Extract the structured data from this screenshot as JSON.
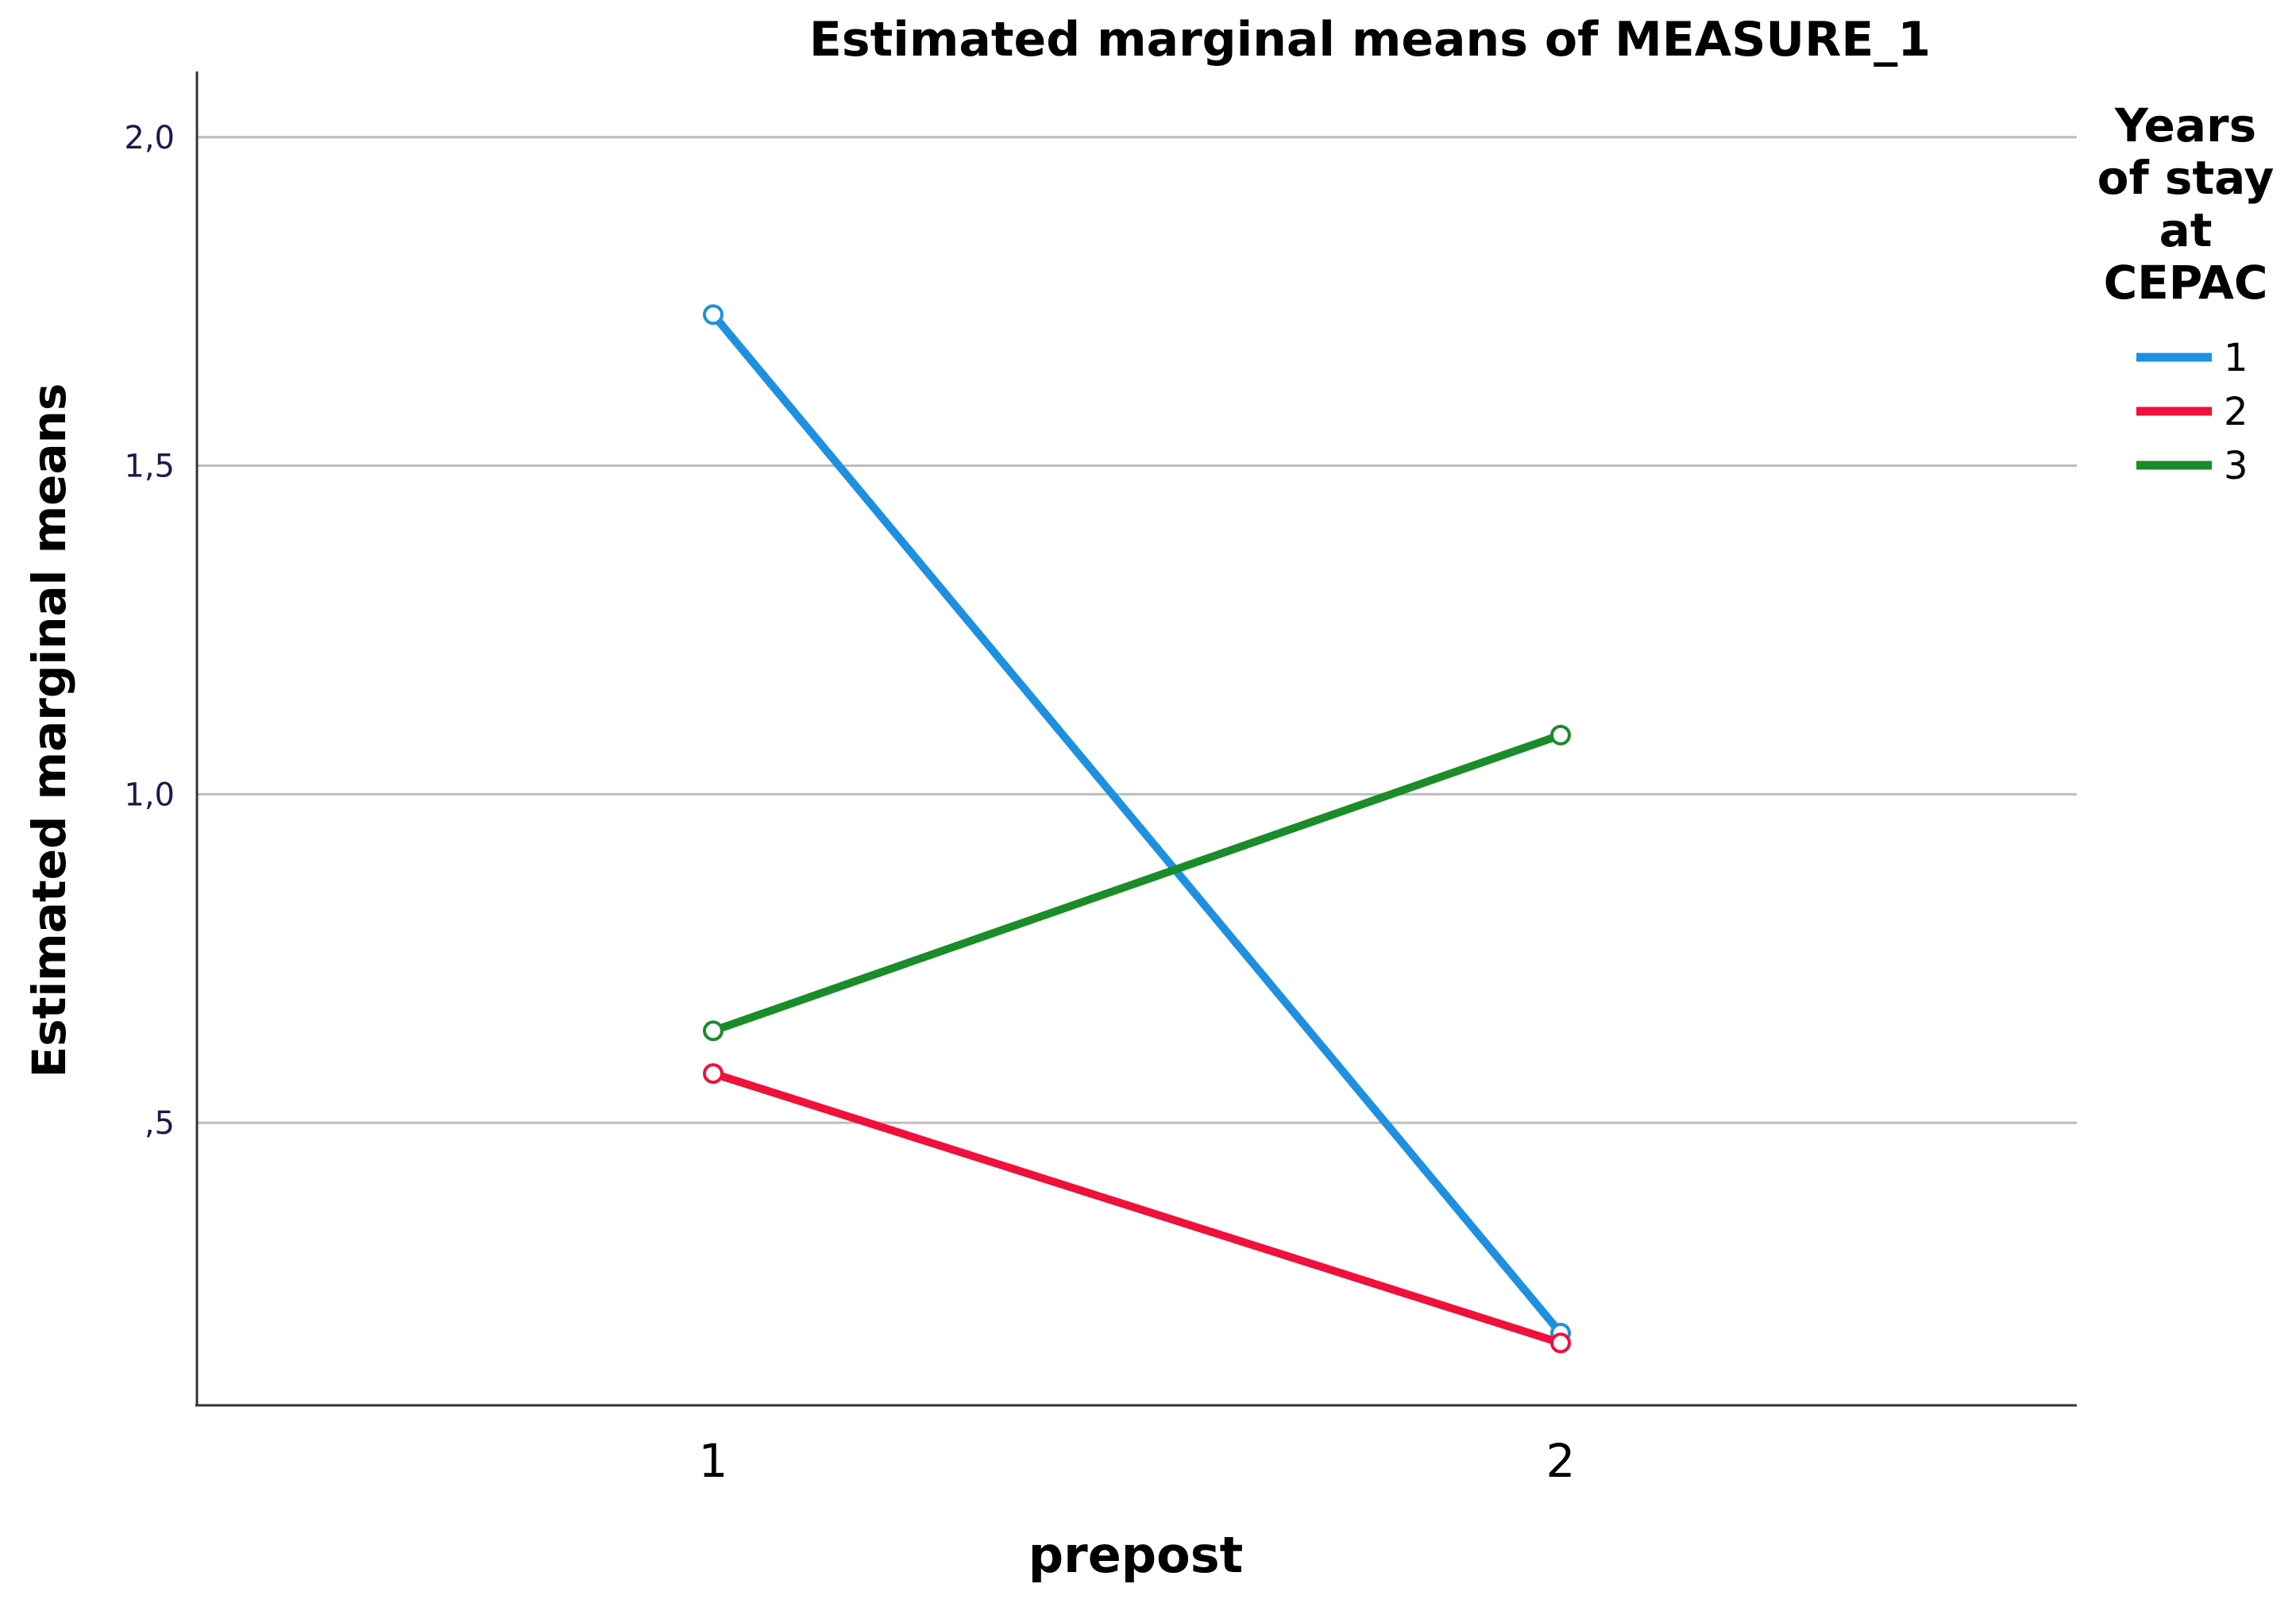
{
  "chart_data": {
    "type": "line",
    "title": "Estimated marginal means of MEASURE_1",
    "xlabel": "prepost",
    "ylabel": "Estimated marginal means",
    "categories": [
      "1",
      "2"
    ],
    "x_tick_labels": [
      "1",
      "2"
    ],
    "y_ticks": [
      0.5,
      1.0,
      1.5,
      2.0
    ],
    "y_tick_labels": [
      ",5",
      "1,0",
      "1,5",
      "2,0"
    ],
    "ylim": [
      0.07,
      2.1
    ],
    "grid": true,
    "legend": {
      "title_lines": [
        "Years",
        "of stay",
        "at",
        "CEPAC"
      ],
      "placement": "right"
    },
    "series": [
      {
        "name": "1",
        "color": "#1e90e0",
        "values": [
          1.73,
          0.18
        ]
      },
      {
        "name": "2",
        "color": "#f0103c",
        "values": [
          0.575,
          0.165
        ]
      },
      {
        "name": "3",
        "color": "#1a8c2a",
        "values": [
          0.64,
          1.09
        ]
      }
    ]
  }
}
